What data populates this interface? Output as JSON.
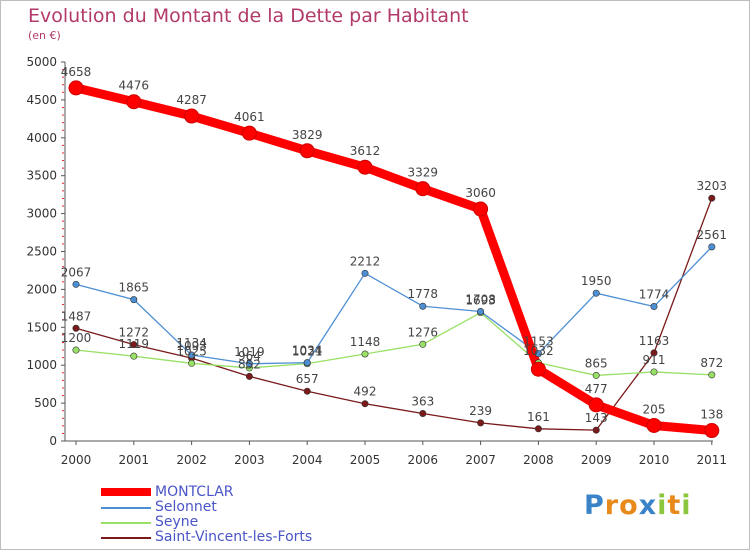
{
  "chart_data": {
    "type": "line",
    "title": "Evolution du Montant de la Dette par Habitant",
    "subtitle": "(en €)",
    "categories": [
      "2000",
      "2001",
      "2002",
      "2003",
      "2004",
      "2005",
      "2006",
      "2007",
      "2008",
      "2009",
      "2010",
      "2011"
    ],
    "ylim": [
      0,
      5000
    ],
    "yticks": [
      "0",
      "500",
      "1000",
      "1500",
      "2000",
      "2500",
      "3000",
      "3500",
      "4000",
      "4500",
      "5000"
    ],
    "grid": false,
    "legend_position": "bottom-left",
    "series": [
      {
        "name": "MONTCLAR",
        "color": "#ff0000",
        "values": [
          4658,
          4476,
          4287,
          4061,
          3829,
          3612,
          3329,
          3060,
          947,
          477,
          205,
          138
        ]
      },
      {
        "name": "Selonnet",
        "color": "#4d8fd4",
        "values": [
          2067,
          1865,
          1134,
          1019,
          1034,
          2212,
          1778,
          1708,
          1153,
          1950,
          1774,
          2561
        ]
      },
      {
        "name": "Seyne",
        "color": "#99e066",
        "values": [
          1200,
          1119,
          1025,
          964,
          1021,
          1148,
          1276,
          1693,
          1032,
          865,
          911,
          872
        ]
      },
      {
        "name": "Saint-Vincent-les-Forts",
        "color": "#7a1a1a",
        "values": [
          1487,
          1272,
          1093,
          852,
          657,
          492,
          363,
          239,
          161,
          143,
          1163,
          3203
        ]
      }
    ],
    "data_labels": [
      [
        "4658",
        "4476",
        "4287",
        "4061",
        "3829",
        "3612",
        "3329",
        "3060",
        "",
        "477",
        "205",
        "138"
      ],
      [
        "2067",
        "1865",
        "1134",
        "1019",
        "1034",
        "2212",
        "1778",
        "1708",
        "1153",
        "1950",
        "1774",
        "2561"
      ],
      [
        "1200",
        "1119",
        "1025",
        "964",
        "1021",
        "1148",
        "1276",
        "1693",
        "1032",
        "865",
        "911",
        "872"
      ],
      [
        "1487",
        "1272",
        "1093",
        "852",
        "657",
        "492",
        "363",
        "239",
        "161",
        "143",
        "1163",
        "3203"
      ]
    ]
  },
  "logo": {
    "letters": [
      "P",
      "r",
      "o",
      "x",
      "i",
      "t",
      "i"
    ],
    "colors": [
      "#3a83c8",
      "#e8891c",
      "#e8891c",
      "#3a83c8",
      "#8cc63e",
      "#e8891c",
      "#8cc63e"
    ]
  }
}
